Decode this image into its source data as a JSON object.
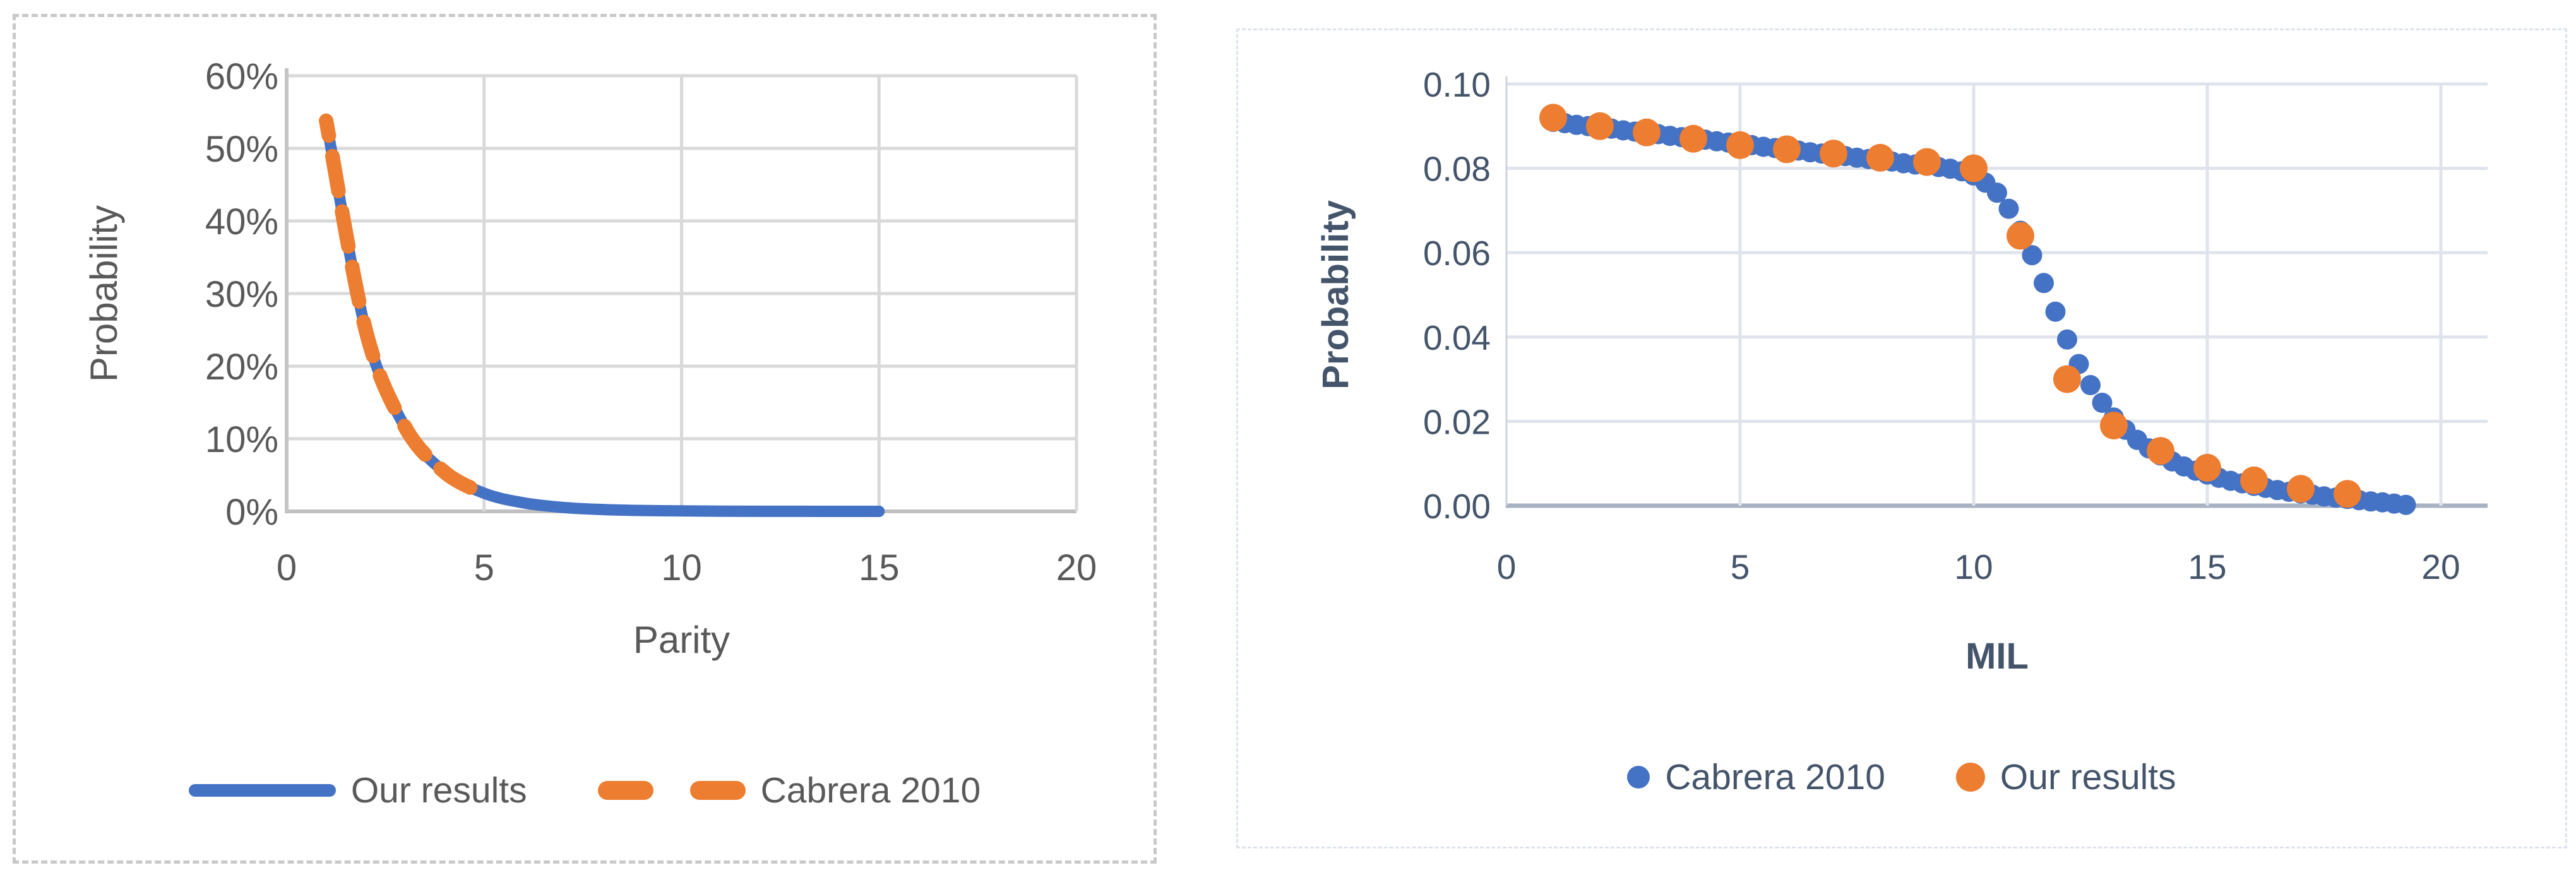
{
  "page": {
    "background": "#ffffff"
  },
  "colors": {
    "blue": "#4472C4",
    "orange": "#ED7D31",
    "left_text": "#595959",
    "right_text": "#44546A"
  },
  "chart_data": [
    {
      "type": "line",
      "title": "",
      "xlabel": "Parity",
      "ylabel": "Probability",
      "xlim": [
        0,
        20
      ],
      "ylim": [
        0,
        0.6
      ],
      "grid": "on",
      "legend_position": "bottom",
      "x_ticks": {
        "values": [
          0,
          5,
          10,
          15,
          20
        ],
        "labels": [
          "0",
          "5",
          "10",
          "15",
          "20"
        ]
      },
      "y_ticks": {
        "values": [
          0,
          0.1,
          0.2,
          0.3,
          0.4,
          0.5,
          0.6
        ],
        "labels": [
          "0%",
          "10%",
          "20%",
          "30%",
          "40%",
          "50%",
          "60%"
        ]
      },
      "legend": [
        {
          "label": "Our results",
          "marker": "line",
          "color": "#4472C4"
        },
        {
          "label": "Cabrera 2010",
          "marker": "dashes",
          "color": "#ED7D31"
        }
      ],
      "series": [
        {
          "name": "Our results",
          "kind": "smooth",
          "color": "#4472C4",
          "stroke_width": 18,
          "points": [
            [
              1,
              0.538
            ],
            [
              2,
              0.25
            ],
            [
              3,
              0.116
            ],
            [
              4,
              0.054
            ],
            [
              5,
              0.025
            ],
            [
              6,
              0.0117
            ],
            [
              7,
              0.0054
            ],
            [
              8,
              0.0025
            ],
            [
              9,
              0.0012
            ],
            [
              10,
              0.0006
            ],
            [
              11,
              0.0003
            ],
            [
              12,
              0.00013
            ],
            [
              13,
              6e-05
            ],
            [
              14,
              3e-05
            ],
            [
              15,
              1e-05
            ]
          ]
        },
        {
          "name": "Cabrera 2010",
          "kind": "smooth",
          "color": "#ED7D31",
          "stroke_width": 23,
          "dash": "56 33",
          "dash_offset": 32,
          "points": [
            [
              1,
              0.538
            ],
            [
              2,
              0.25
            ],
            [
              3,
              0.116
            ],
            [
              4,
              0.054
            ],
            [
              4.9,
              0.0265
            ]
          ]
        }
      ]
    },
    {
      "type": "scatter",
      "title": "",
      "xlabel": "MIL",
      "ylabel": "Probability",
      "xlim": [
        0,
        21
      ],
      "ylim": [
        0,
        0.1
      ],
      "grid": "on",
      "legend_position": "bottom",
      "x_ticks": {
        "values": [
          0,
          5,
          10,
          15,
          20
        ],
        "labels": [
          "0",
          "5",
          "10",
          "15",
          "20"
        ]
      },
      "y_ticks": {
        "values": [
          0,
          0.02,
          0.04,
          0.06,
          0.08,
          0.1
        ],
        "labels": [
          "0.00",
          "0.02",
          "0.04",
          "0.06",
          "0.08",
          "0.10"
        ]
      },
      "legend": [
        {
          "label": "Cabrera 2010",
          "marker": "dot-small",
          "color": "#4472C4"
        },
        {
          "label": "Our results",
          "marker": "dot",
          "color": "#ED7D31"
        }
      ],
      "series": [
        {
          "name": "Cabrera 2010",
          "kind": "dots",
          "color": "#4472C4",
          "radius": 16,
          "points": [
            [
              1,
              0.091
            ],
            [
              1.25,
              0.0907
            ],
            [
              1.5,
              0.0903
            ],
            [
              1.75,
              0.09
            ],
            [
              2,
              0.0897
            ],
            [
              2.25,
              0.0894
            ],
            [
              2.5,
              0.089
            ],
            [
              2.75,
              0.0887
            ],
            [
              3,
              0.0884
            ],
            [
              3.25,
              0.0881
            ],
            [
              3.5,
              0.0877
            ],
            [
              3.75,
              0.0874
            ],
            [
              4,
              0.0871
            ],
            [
              4.25,
              0.0868
            ],
            [
              4.5,
              0.0864
            ],
            [
              4.75,
              0.0861
            ],
            [
              5,
              0.0858
            ],
            [
              5.25,
              0.0855
            ],
            [
              5.5,
              0.0851
            ],
            [
              5.75,
              0.0848
            ],
            [
              6,
              0.0845
            ],
            [
              6.25,
              0.0842
            ],
            [
              6.5,
              0.0838
            ],
            [
              6.75,
              0.0835
            ],
            [
              7,
              0.0832
            ],
            [
              7.25,
              0.0829
            ],
            [
              7.5,
              0.0825
            ],
            [
              7.75,
              0.0822
            ],
            [
              8,
              0.0819
            ],
            [
              8.25,
              0.0816
            ],
            [
              8.5,
              0.0812
            ],
            [
              8.75,
              0.0809
            ],
            [
              9,
              0.0806
            ],
            [
              9.25,
              0.0803
            ],
            [
              9.5,
              0.0799
            ],
            [
              9.75,
              0.0793
            ],
            [
              10,
              0.0783
            ],
            [
              10.25,
              0.0766
            ],
            [
              10.5,
              0.0742
            ],
            [
              10.75,
              0.0704
            ],
            [
              11,
              0.0652
            ],
            [
              11.25,
              0.0594
            ],
            [
              11.5,
              0.0528
            ],
            [
              11.75,
              0.046
            ],
            [
              12,
              0.0394
            ],
            [
              12.25,
              0.0336
            ],
            [
              12.5,
              0.0286
            ],
            [
              12.75,
              0.0244
            ],
            [
              13,
              0.0209
            ],
            [
              13.25,
              0.018
            ],
            [
              13.5,
              0.0156
            ],
            [
              13.75,
              0.0136
            ],
            [
              14,
              0.0119
            ],
            [
              14.25,
              0.0105
            ],
            [
              14.5,
              0.0093
            ],
            [
              14.75,
              0.0083
            ],
            [
              15,
              0.0074
            ],
            [
              15.25,
              0.0066
            ],
            [
              15.5,
              0.0059
            ],
            [
              15.75,
              0.0053
            ],
            [
              16,
              0.0047
            ],
            [
              16.25,
              0.0042
            ],
            [
              16.5,
              0.0037
            ],
            [
              16.75,
              0.0033
            ],
            [
              17,
              0.0029
            ],
            [
              17.25,
              0.0026
            ],
            [
              17.5,
              0.0022
            ],
            [
              17.75,
              0.0019
            ],
            [
              18,
              0.0016
            ],
            [
              18.25,
              0.0013
            ],
            [
              18.5,
              0.001
            ],
            [
              18.75,
              0.0008
            ],
            [
              19,
              0.0005
            ],
            [
              19.25,
              0.0002
            ]
          ]
        },
        {
          "name": "Our results",
          "kind": "dots",
          "color": "#ED7D31",
          "radius": 22,
          "points": [
            [
              1,
              0.092
            ],
            [
              2,
              0.09
            ],
            [
              3,
              0.0885
            ],
            [
              4,
              0.087
            ],
            [
              5,
              0.0855
            ],
            [
              6,
              0.0845
            ],
            [
              7,
              0.0835
            ],
            [
              8,
              0.0825
            ],
            [
              9,
              0.0815
            ],
            [
              10,
              0.08
            ],
            [
              11,
              0.064
            ],
            [
              12,
              0.03
            ],
            [
              13,
              0.019
            ],
            [
              14,
              0.013
            ],
            [
              15,
              0.009
            ],
            [
              16,
              0.006
            ],
            [
              17,
              0.004
            ],
            [
              18,
              0.0028
            ]
          ]
        }
      ]
    }
  ]
}
